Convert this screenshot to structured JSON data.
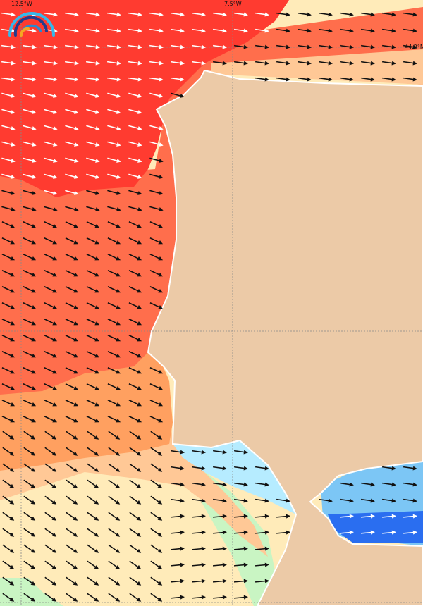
{
  "map": {
    "grid_labels": {
      "lon_left": "12.5°W",
      "lon_right": "7.5°W",
      "lat": "44.2°N"
    },
    "colors": {
      "very_high": "#ff3b30",
      "high": "#ff6e4c",
      "mid_high": "#ffa060",
      "mid": "#ffc896",
      "low": "#ffebb9",
      "very_low": "#c9f5c3",
      "calm_light": "#b6ecff",
      "calm": "#5ab2f0",
      "calm_dark": "#1f5ce6",
      "land": "#eccaa7",
      "gridline": "#888888"
    },
    "logo": "rainbow-logo"
  }
}
